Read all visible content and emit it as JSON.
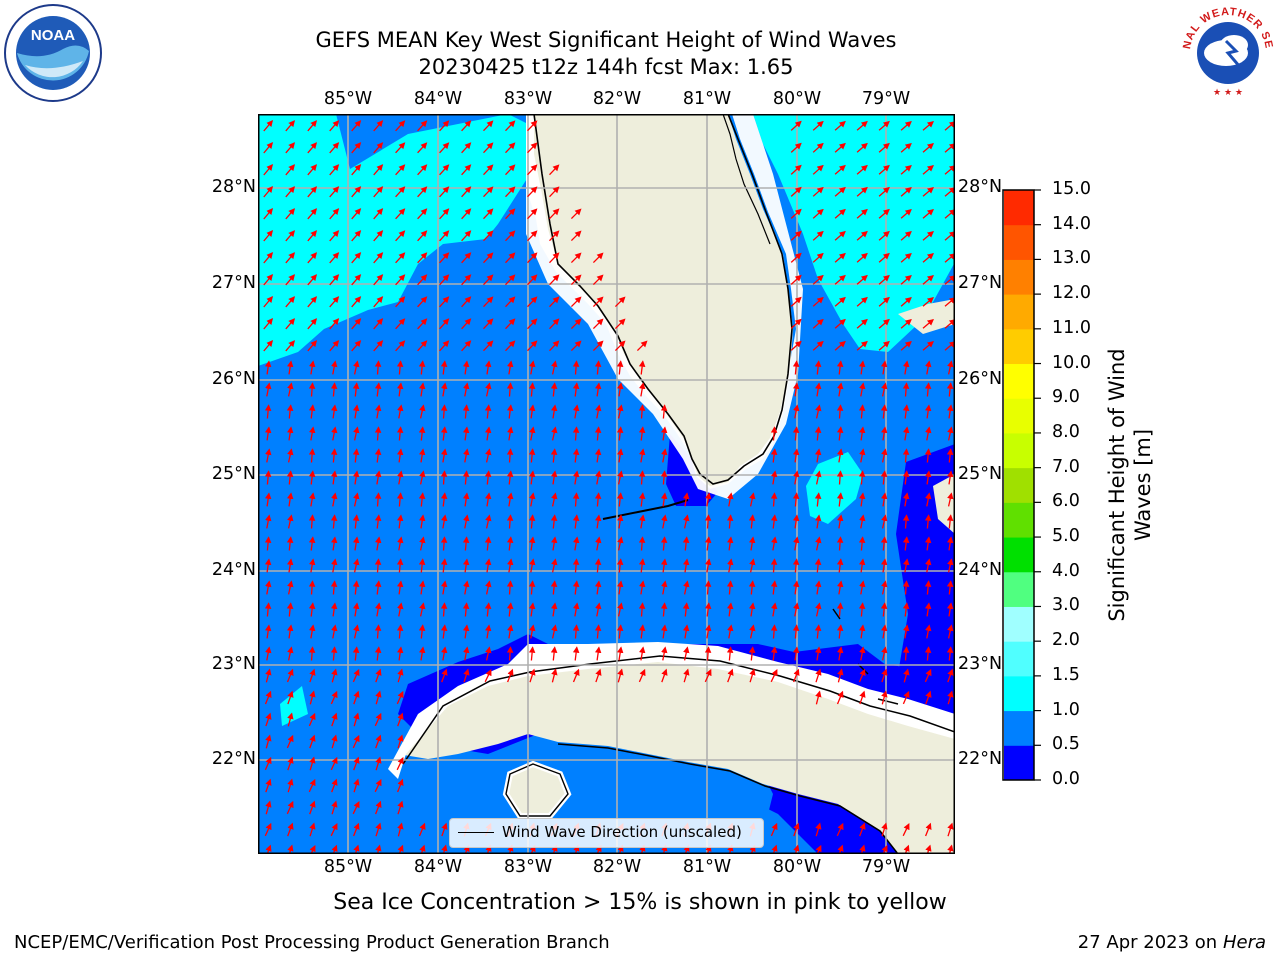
{
  "title_line1": "GEFS MEAN Key West Significant Height of Wind Waves",
  "title_line2": "20230425 t12z 144h fcst   Max: 1.65",
  "lon_labels": [
    "85°W",
    "84°W",
    "83°W",
    "82°W",
    "81°W",
    "80°W",
    "79°W"
  ],
  "lat_labels": [
    "28°N",
    "27°N",
    "26°N",
    "25°N",
    "24°N",
    "23°N",
    "22°N"
  ],
  "colorbar": {
    "title": "Significant Height of Wind Waves [m]",
    "title_line1": "Significant Height of Wind",
    "title_line2": "Waves [m]",
    "ticks": [
      "0.0",
      "0.5",
      "1.0",
      "1.5",
      "2.0",
      "3.0",
      "4.0",
      "5.0",
      "6.0",
      "7.0",
      "8.0",
      "9.0",
      "10.0",
      "11.0",
      "12.0",
      "13.0",
      "14.0",
      "15.0"
    ],
    "colors": [
      "#0000ff",
      "#0080ff",
      "#00ffff",
      "#50ffff",
      "#a0ffff",
      "#50ff80",
      "#00e000",
      "#60e000",
      "#a0e000",
      "#c8ff00",
      "#e8ff00",
      "#ffff00",
      "#ffcc00",
      "#ffaa00",
      "#ff8000",
      "#ff5500",
      "#ff2a00",
      "#ff0000"
    ]
  },
  "legend_label": "Wind Wave Direction (unscaled)",
  "sea_ice_note": "Sea Ice Concentration > 15% is shown in pink to yellow",
  "footer_left": "NCEP/EMC/Verification Post Processing Product Generation Branch",
  "footer_date": "27 Apr 2023 on ",
  "footer_host": "Hera",
  "logos": {
    "left": "NOAA",
    "right": "NATIONAL WEATHER SERVICE"
  },
  "map_colors": {
    "land": "#eeeedc",
    "water_low": "#0000ff",
    "water_mid": "#0080ff",
    "water_high": "#00ffff",
    "arrow": "#ff0000",
    "grid": "#b0b0b0"
  }
}
